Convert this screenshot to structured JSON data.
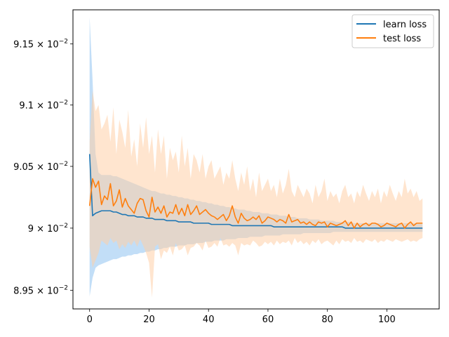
{
  "chart_data": {
    "type": "line",
    "title": "",
    "xlabel": "",
    "ylabel": "",
    "xlim": [
      -5.6,
      117.6
    ],
    "ylim": [
      0.08935,
      0.09178
    ],
    "yscale": "log",
    "grid": false,
    "legend_position": "top-right",
    "x_ticks": [
      0,
      20,
      40,
      60,
      80,
      100
    ],
    "y_ticks": [
      {
        "value": 0.0895,
        "mantissa": "8.95",
        "times": " × ",
        "base": "10",
        "exponent": "−2"
      },
      {
        "value": 0.09,
        "mantissa": "9",
        "times": " × ",
        "base": "10",
        "exponent": "−2"
      },
      {
        "value": 0.0905,
        "mantissa": "9.05",
        "times": " × ",
        "base": "10",
        "exponent": "−2"
      },
      {
        "value": 0.091,
        "mantissa": "9.1",
        "times": " × ",
        "base": "10",
        "exponent": "−2"
      },
      {
        "value": 0.0915,
        "mantissa": "9.15",
        "times": " × ",
        "base": "10",
        "exponent": "−2"
      }
    ],
    "x_range": {
      "start": 0,
      "end": 112,
      "step": 1
    },
    "series": [
      {
        "name": "learn loss",
        "color": "#1f77b4",
        "band_color": "#8fc3f0",
        "mean": [
          0.0906,
          0.0901,
          0.09012,
          0.09013,
          0.09014,
          0.09014,
          0.09014,
          0.09014,
          0.09013,
          0.09013,
          0.09012,
          0.09011,
          0.09011,
          0.0901,
          0.0901,
          0.0901,
          0.09009,
          0.09009,
          0.09009,
          0.09008,
          0.09008,
          0.09008,
          0.09007,
          0.09007,
          0.09007,
          0.09007,
          0.09006,
          0.09006,
          0.09006,
          0.09006,
          0.09005,
          0.09005,
          0.09005,
          0.09005,
          0.09005,
          0.09004,
          0.09004,
          0.09004,
          0.09004,
          0.09004,
          0.09004,
          0.09003,
          0.09003,
          0.09003,
          0.09003,
          0.09003,
          0.09003,
          0.09003,
          0.09002,
          0.09002,
          0.09002,
          0.09002,
          0.09002,
          0.09002,
          0.09002,
          0.09002,
          0.09002,
          0.09002,
          0.09002,
          0.09002,
          0.09002,
          0.09002,
          0.09001,
          0.09001,
          0.09001,
          0.09001,
          0.09001,
          0.09001,
          0.09001,
          0.09001,
          0.09001,
          0.09001,
          0.09001,
          0.09001,
          0.09001,
          0.09001,
          0.09001,
          0.09001,
          0.09001,
          0.09001,
          0.09001,
          0.09001,
          0.09001,
          0.09001,
          0.09001,
          0.09001,
          0.09,
          0.09,
          0.09,
          0.09,
          0.09,
          0.09,
          0.09,
          0.09,
          0.09,
          0.09,
          0.09,
          0.09,
          0.09,
          0.09,
          0.09,
          0.09,
          0.09,
          0.09,
          0.09,
          0.09,
          0.09,
          0.09,
          0.09,
          0.09,
          0.09,
          0.09,
          0.09
        ],
        "upper": [
          0.09172,
          0.0912,
          0.0906,
          0.09045,
          0.09043,
          0.09043,
          0.09043,
          0.09043,
          0.09042,
          0.09042,
          0.09041,
          0.0904,
          0.09039,
          0.09038,
          0.09037,
          0.09036,
          0.09035,
          0.09034,
          0.09033,
          0.09032,
          0.09031,
          0.0903,
          0.0903,
          0.09029,
          0.09028,
          0.09028,
          0.09027,
          0.09027,
          0.09026,
          0.09026,
          0.09025,
          0.09025,
          0.09024,
          0.09024,
          0.09023,
          0.09023,
          0.09022,
          0.09022,
          0.09021,
          0.09021,
          0.0902,
          0.0902,
          0.09019,
          0.09019,
          0.09018,
          0.09018,
          0.09017,
          0.09017,
          0.09016,
          0.09016,
          0.09015,
          0.09015,
          0.09015,
          0.09014,
          0.09014,
          0.09013,
          0.09013,
          0.09013,
          0.09012,
          0.09012,
          0.09012,
          0.09011,
          0.09011,
          0.09011,
          0.0901,
          0.0901,
          0.0901,
          0.09009,
          0.09009,
          0.09009,
          0.09008,
          0.09008,
          0.09008,
          0.09008,
          0.09007,
          0.09007,
          0.09007,
          0.09007,
          0.09006,
          0.09006,
          0.09006,
          0.09006,
          0.09006,
          0.09005,
          0.09005,
          0.09005,
          0.09005,
          0.09005,
          0.09005,
          0.09004,
          0.09004,
          0.09004,
          0.09004,
          0.09004,
          0.09004,
          0.09004,
          0.09004,
          0.09004,
          0.09004,
          0.09004,
          0.09004,
          0.09004,
          0.09004,
          0.09004,
          0.09004,
          0.09004,
          0.09004,
          0.09004,
          0.09004,
          0.09004,
          0.09004,
          0.09004,
          0.09004
        ],
        "lower": [
          0.08945,
          0.0896,
          0.08968,
          0.0897,
          0.08971,
          0.08972,
          0.08973,
          0.08974,
          0.08975,
          0.08975,
          0.08976,
          0.08977,
          0.08977,
          0.08978,
          0.08978,
          0.08979,
          0.08979,
          0.0898,
          0.0898,
          0.08981,
          0.08981,
          0.08982,
          0.08982,
          0.08983,
          0.08983,
          0.08984,
          0.08984,
          0.08985,
          0.08985,
          0.08985,
          0.08986,
          0.08986,
          0.08986,
          0.08987,
          0.08987,
          0.08987,
          0.08988,
          0.08988,
          0.08988,
          0.08989,
          0.08989,
          0.08989,
          0.0899,
          0.0899,
          0.0899,
          0.0899,
          0.08991,
          0.08991,
          0.08991,
          0.08991,
          0.08992,
          0.08992,
          0.08992,
          0.08992,
          0.08993,
          0.08993,
          0.08993,
          0.08993,
          0.08993,
          0.08994,
          0.08994,
          0.08994,
          0.08994,
          0.08994,
          0.08994,
          0.08995,
          0.08995,
          0.08995,
          0.08995,
          0.08995,
          0.08995,
          0.08995,
          0.08996,
          0.08996,
          0.08996,
          0.08996,
          0.08996,
          0.08996,
          0.08996,
          0.08996,
          0.08996,
          0.08996,
          0.08997,
          0.08997,
          0.08997,
          0.08997,
          0.08997,
          0.08997,
          0.08997,
          0.08997,
          0.08997,
          0.08997,
          0.08997,
          0.08997,
          0.08997,
          0.08997,
          0.08997,
          0.08997,
          0.08997,
          0.08997,
          0.08997,
          0.08997,
          0.08997,
          0.08997,
          0.08997,
          0.08997,
          0.08997,
          0.08997,
          0.08997,
          0.08997,
          0.08997,
          0.08997,
          0.08997
        ]
      },
      {
        "name": "test loss",
        "color": "#ff7f0e",
        "band_color": "#ffd0a8",
        "mean": [
          0.09018,
          0.0904,
          0.09033,
          0.09038,
          0.09019,
          0.09026,
          0.09023,
          0.09036,
          0.09018,
          0.09022,
          0.09031,
          0.09017,
          0.09024,
          0.09018,
          0.09015,
          0.09012,
          0.0902,
          0.09024,
          0.09023,
          0.09014,
          0.09009,
          0.09025,
          0.09013,
          0.09017,
          0.09012,
          0.09018,
          0.09009,
          0.09013,
          0.09012,
          0.09019,
          0.09011,
          0.09016,
          0.0901,
          0.09019,
          0.09011,
          0.09014,
          0.09018,
          0.09011,
          0.09013,
          0.09015,
          0.09012,
          0.0901,
          0.09009,
          0.09007,
          0.09009,
          0.09011,
          0.09006,
          0.0901,
          0.09018,
          0.09009,
          0.09004,
          0.09012,
          0.09008,
          0.09006,
          0.09007,
          0.09009,
          0.09007,
          0.0901,
          0.09004,
          0.09006,
          0.09009,
          0.09008,
          0.09007,
          0.09005,
          0.09007,
          0.09006,
          0.09004,
          0.09011,
          0.09005,
          0.09006,
          0.09007,
          0.09004,
          0.09005,
          0.09003,
          0.09005,
          0.09003,
          0.09002,
          0.09005,
          0.09004,
          0.09005,
          0.09001,
          0.09004,
          0.09003,
          0.09002,
          0.09003,
          0.09004,
          0.09006,
          0.09002,
          0.09005,
          0.09,
          0.09004,
          0.09001,
          0.09003,
          0.09004,
          0.09002,
          0.09004,
          0.09004,
          0.09003,
          0.09001,
          0.09002,
          0.09004,
          0.09003,
          0.09002,
          0.09001,
          0.09003,
          0.09004,
          0.09,
          0.09003,
          0.09005,
          0.09002,
          0.09004,
          0.09004,
          0.09004
        ],
        "upper": [
          0.0907,
          0.09112,
          0.09095,
          0.091,
          0.0908,
          0.09085,
          0.09092,
          0.0907,
          0.09098,
          0.0906,
          0.09088,
          0.09078,
          0.09065,
          0.09096,
          0.09058,
          0.09072,
          0.0905,
          0.09085,
          0.09065,
          0.0909,
          0.0906,
          0.09075,
          0.09045,
          0.0908,
          0.0906,
          0.09075,
          0.0904,
          0.09065,
          0.09055,
          0.09062,
          0.09045,
          0.09075,
          0.0905,
          0.09065,
          0.0904,
          0.0906,
          0.09055,
          0.09045,
          0.0906,
          0.0904,
          0.0905,
          0.09055,
          0.0904,
          0.09045,
          0.0905,
          0.09035,
          0.09045,
          0.0904,
          0.09055,
          0.0904,
          0.0903,
          0.09045,
          0.09035,
          0.0905,
          0.0903,
          0.0904,
          0.09025,
          0.09045,
          0.0903,
          0.09035,
          0.0904,
          0.0903,
          0.09035,
          0.09025,
          0.0904,
          0.09028,
          0.09035,
          0.09048,
          0.0903,
          0.09025,
          0.09035,
          0.0903,
          0.09025,
          0.09032,
          0.09028,
          0.0902,
          0.09035,
          0.09025,
          0.0903,
          0.0904,
          0.09022,
          0.0903,
          0.09025,
          0.09028,
          0.0902,
          0.0903,
          0.09035,
          0.09025,
          0.09028,
          0.0902,
          0.0903,
          0.09025,
          0.09035,
          0.09028,
          0.09022,
          0.0903,
          0.09025,
          0.09032,
          0.0902,
          0.0903,
          0.09025,
          0.09035,
          0.09028,
          0.09022,
          0.0903,
          0.09025,
          0.0904,
          0.09028,
          0.09032,
          0.09025,
          0.0903,
          0.09022,
          0.09024
        ],
        "lower": [
          0.08985,
          0.08968,
          0.08974,
          0.0898,
          0.0899,
          0.08988,
          0.08986,
          0.08992,
          0.08988,
          0.0899,
          0.08983,
          0.08987,
          0.08984,
          0.08989,
          0.08986,
          0.0899,
          0.08985,
          0.08991,
          0.08986,
          0.0898,
          0.08972,
          0.08944,
          0.08985,
          0.08987,
          0.08975,
          0.08982,
          0.0898,
          0.08985,
          0.08978,
          0.08988,
          0.08982,
          0.08983,
          0.08986,
          0.08978,
          0.08984,
          0.08985,
          0.08988,
          0.08986,
          0.08982,
          0.0899,
          0.08984,
          0.08985,
          0.08988,
          0.08985,
          0.08992,
          0.08986,
          0.08987,
          0.08985,
          0.08988,
          0.08986,
          0.08978,
          0.08988,
          0.08986,
          0.08987,
          0.08986,
          0.0899,
          0.08988,
          0.08985,
          0.08986,
          0.08989,
          0.08987,
          0.08989,
          0.08986,
          0.0899,
          0.08987,
          0.08989,
          0.08988,
          0.0899,
          0.08986,
          0.08992,
          0.08988,
          0.0899,
          0.08987,
          0.08989,
          0.08986,
          0.0899,
          0.08988,
          0.08991,
          0.08987,
          0.08989,
          0.0899,
          0.08988,
          0.08986,
          0.0899,
          0.08987,
          0.08991,
          0.08989,
          0.0899,
          0.08988,
          0.08992,
          0.08989,
          0.0899,
          0.08988,
          0.08991,
          0.0899,
          0.08989,
          0.08991,
          0.08988,
          0.0899,
          0.08989,
          0.08991,
          0.0899,
          0.08989,
          0.08991,
          0.0899,
          0.08989,
          0.0899,
          0.08991,
          0.08989,
          0.0899,
          0.08989,
          0.08991,
          0.08992
        ]
      }
    ]
  }
}
